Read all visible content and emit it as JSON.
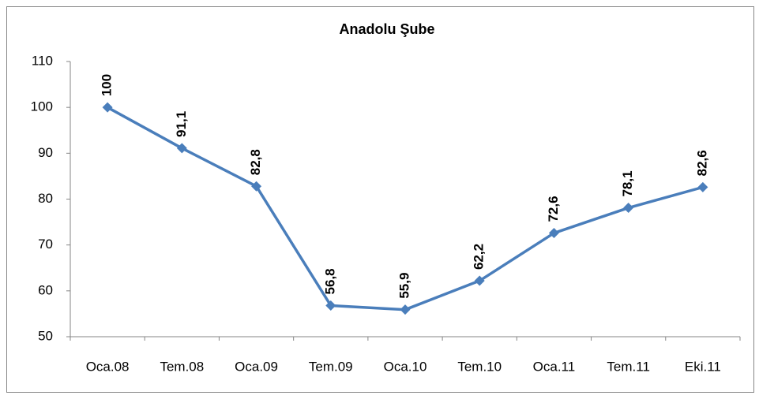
{
  "chart_data": {
    "type": "line",
    "title": "Anadolu Şube",
    "categories": [
      "Oca.08",
      "Tem.08",
      "Oca.09",
      "Tem.09",
      "Oca.10",
      "Tem.10",
      "Oca.11",
      "Tem.11",
      "Eki.11"
    ],
    "values": [
      100,
      91.1,
      82.8,
      56.8,
      55.9,
      62.2,
      72.6,
      78.1,
      82.6
    ],
    "value_labels": [
      "100",
      "91,1",
      "82,8",
      "56,8",
      "55,9",
      "62,2",
      "72,6",
      "78,1",
      "82,6"
    ],
    "color": "#4a7ebb",
    "ylim": [
      50,
      110
    ],
    "yticks": [
      50,
      60,
      70,
      80,
      90,
      100,
      110
    ],
    "grid": false
  }
}
